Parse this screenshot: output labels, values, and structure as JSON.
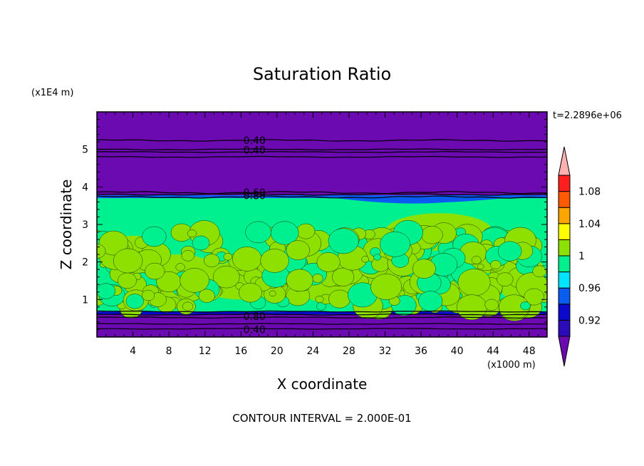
{
  "chart_data": {
    "type": "heatmap",
    "title": "Saturation Ratio",
    "xlabel": "X coordinate",
    "ylabel": "Z coordinate",
    "x_units": "(x1000 m)",
    "y_units": "(x1E4 m)",
    "time_label": "t=2.2896e+06",
    "contour_interval": "CONTOUR INTERVAL = 2.000E-01",
    "xlim": [
      0,
      50
    ],
    "ylim": [
      0,
      6
    ],
    "x_ticks": [
      4,
      8,
      12,
      16,
      20,
      24,
      28,
      32,
      36,
      40,
      44,
      48
    ],
    "y_ticks": [
      1,
      2,
      3,
      4,
      5
    ],
    "colorbar": {
      "levels": [
        0.9,
        0.92,
        0.94,
        0.96,
        0.98,
        1.0,
        1.02,
        1.04,
        1.06,
        1.08,
        1.1
      ],
      "labels": [
        "1.08",
        "1.04",
        "1",
        "0.96",
        "0.92"
      ],
      "colors": [
        "#6a0ab0",
        "#2b0ab8",
        "#0a0acc",
        "#0a5cf0",
        "#00e5ff",
        "#00f090",
        "#8ee000",
        "#ffff00",
        "#ffa500",
        "#ff5a00",
        "#ff1e1e",
        "#ffb0b0"
      ]
    },
    "regions": [
      {
        "z": [
          0,
          0.6
        ],
        "value": 0.9,
        "color": "#6a0ab0"
      },
      {
        "z": [
          0.6,
          0.68
        ],
        "value": 0.94,
        "color": "#0a0acc"
      },
      {
        "z": [
          0.68,
          3.7
        ],
        "value": 0.99,
        "color": "#00f090",
        "note": "mixed with 1.00-1.02 patches"
      },
      {
        "z": [
          3.7,
          3.78
        ],
        "value": 0.95,
        "color": "#0a5cf0"
      },
      {
        "z": [
          3.78,
          6
        ],
        "value": 0.9,
        "color": "#6a0ab0"
      }
    ],
    "contour_labels": [
      {
        "text": "0.40",
        "x": 17.5,
        "z": 5.24
      },
      {
        "text": "0.40",
        "x": 17.5,
        "z": 4.98
      },
      {
        "text": "0.60",
        "x": 17.5,
        "z": 3.85
      },
      {
        "text": "0.80",
        "x": 17.5,
        "z": 3.77
      },
      {
        "text": "0.80",
        "x": 17.5,
        "z": 0.55
      },
      {
        "text": "0.40",
        "x": 17.5,
        "z": 0.2
      }
    ]
  }
}
